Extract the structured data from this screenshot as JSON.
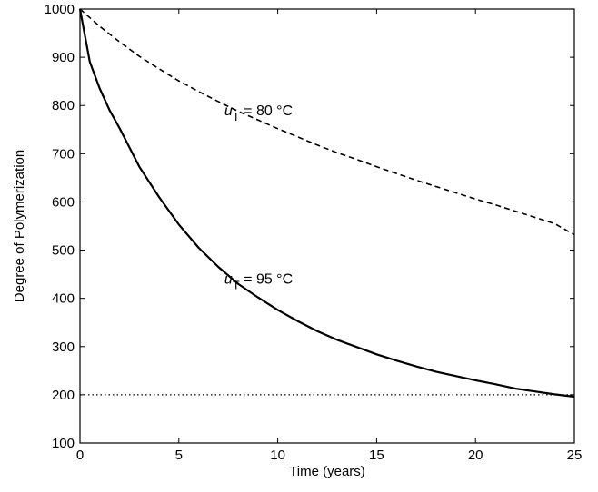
{
  "chart_data": {
    "type": "line",
    "title": "",
    "xlabel": "Time (years)",
    "ylabel": "Degree of Polymerization",
    "xlim": [
      0,
      25
    ],
    "ylim": [
      100,
      1000
    ],
    "xticks": [
      "0",
      "5",
      "10",
      "15",
      "20",
      "25"
    ],
    "yticks": [
      "100",
      "200",
      "300",
      "400",
      "500",
      "600",
      "700",
      "800",
      "900",
      "1000"
    ],
    "grid": false,
    "legend": "none",
    "annotations": [
      {
        "var": "u",
        "sub": "T",
        "rest": " = 80 °C",
        "x": 7.3,
        "y": 780
      },
      {
        "var": "u",
        "sub": "T",
        "rest": " = 95 °C",
        "x": 7.3,
        "y": 430
      }
    ],
    "series": [
      {
        "style": "dashed",
        "color": "#000000",
        "x": [
          0,
          1,
          2,
          3,
          4,
          5,
          6,
          7,
          8,
          9,
          10,
          11,
          12,
          13,
          14,
          15,
          16,
          17,
          18,
          19,
          20,
          21,
          22,
          23,
          24,
          25
        ],
        "y": [
          1000,
          964,
          932,
          902,
          876,
          851,
          829,
          808,
          788,
          770,
          752,
          735,
          718,
          702,
          688,
          673,
          659,
          645,
          632,
          619,
          606,
          594,
          581,
          568,
          555,
          532
        ]
      },
      {
        "style": "solid",
        "color": "#000000",
        "x": [
          0,
          0.5,
          1,
          1.5,
          2,
          3,
          4,
          5,
          6,
          7,
          8,
          9,
          10,
          11,
          12,
          13,
          14,
          15,
          16,
          17,
          18,
          19,
          20,
          21,
          22,
          23,
          24,
          25
        ],
        "y": [
          1000,
          890,
          835,
          790,
          753,
          673,
          610,
          553,
          505,
          465,
          430,
          402,
          376,
          353,
          332,
          314,
          299,
          284,
          271,
          259,
          248,
          239,
          230,
          222,
          213,
          207,
          201,
          196
        ]
      },
      {
        "style": "dotted",
        "color": "#000000",
        "x": [
          0,
          25
        ],
        "y": [
          200,
          200
        ]
      }
    ]
  }
}
